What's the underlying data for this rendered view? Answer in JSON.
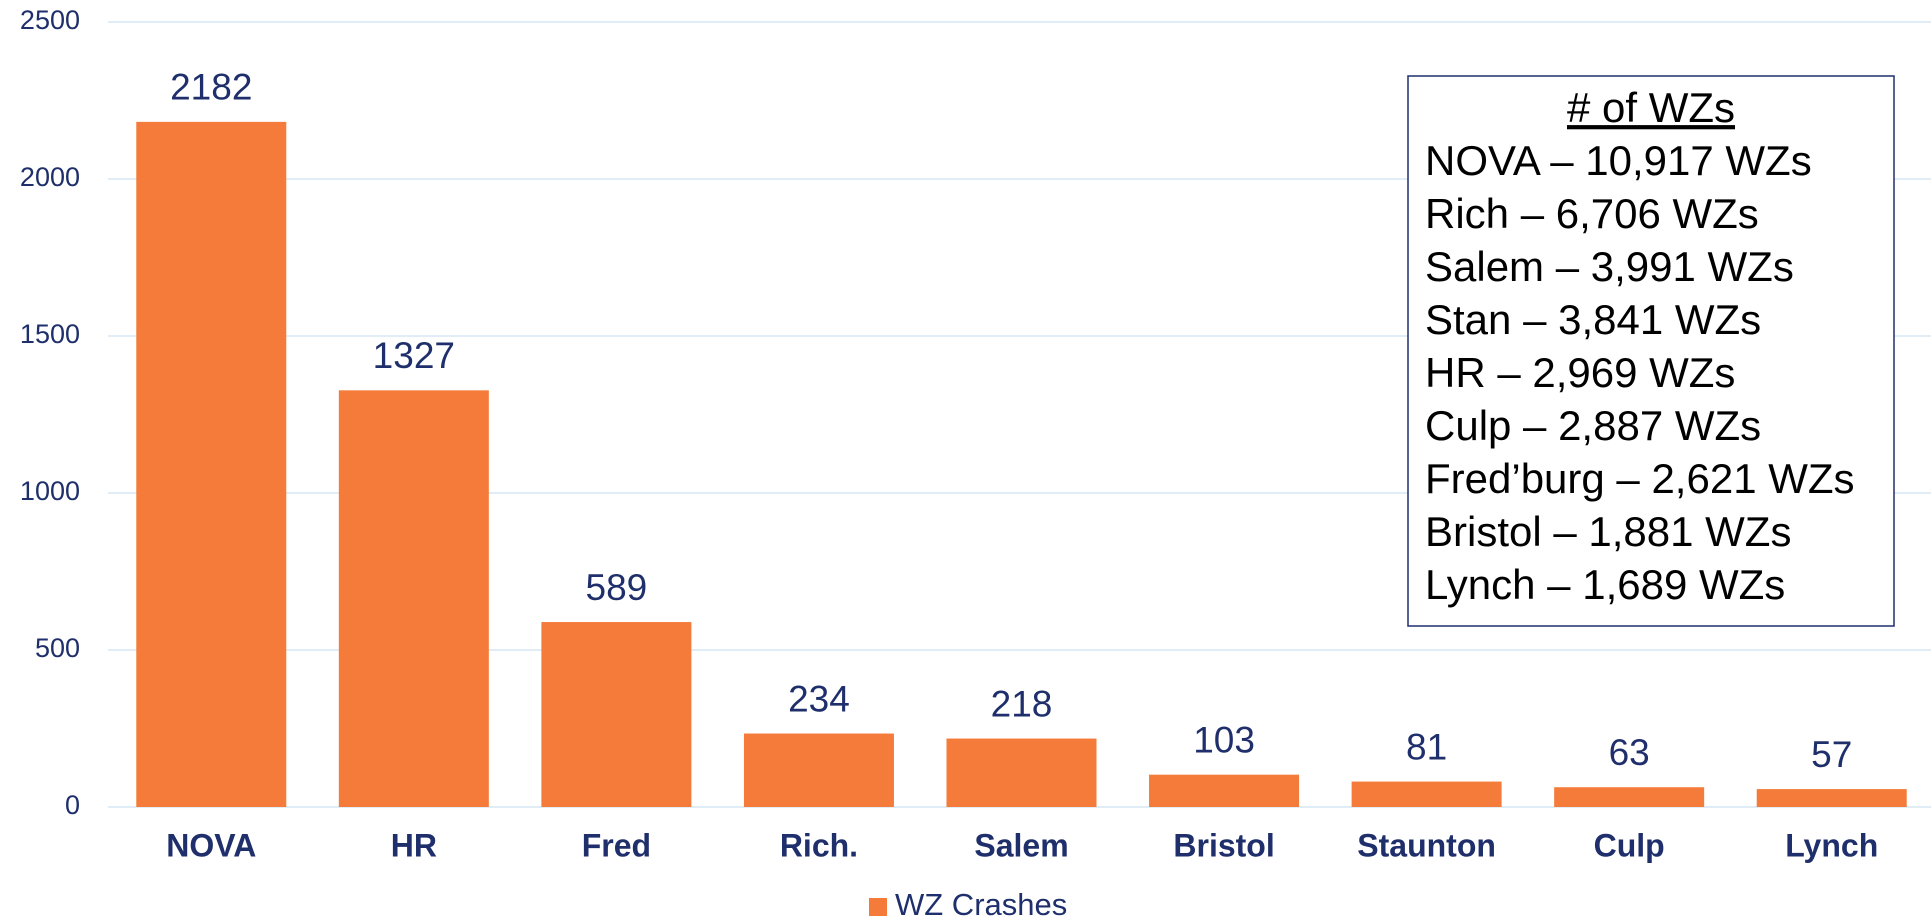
{
  "chart_data": {
    "type": "bar",
    "categories": [
      "NOVA",
      "HR",
      "Fred",
      "Rich.",
      "Salem",
      "Bristol",
      "Staunton",
      "Culp",
      "Lynch"
    ],
    "series": [
      {
        "name": "WZ Crashes",
        "color": "#f47b3a",
        "values": [
          2182,
          1327,
          589,
          234,
          218,
          103,
          81,
          63,
          57
        ]
      }
    ],
    "ylim": [
      0,
      2500
    ],
    "yticks": [
      0,
      500,
      1000,
      1500,
      2000,
      2500
    ],
    "grid": true,
    "legend": "bottom",
    "annotation": {
      "title": "# of WZs",
      "lines": [
        "NOVA – 10,917 WZs",
        "Rich – 6,706 WZs",
        "Salem – 3,991 WZs",
        "Stan – 3,841 WZs",
        "HR – 2,969 WZs",
        "Culp – 2,887 WZs",
        "Fred’burg – 2,621 WZs",
        "Bristol – 1,881 WZs",
        "Lynch – 1,689 WZs"
      ]
    }
  }
}
